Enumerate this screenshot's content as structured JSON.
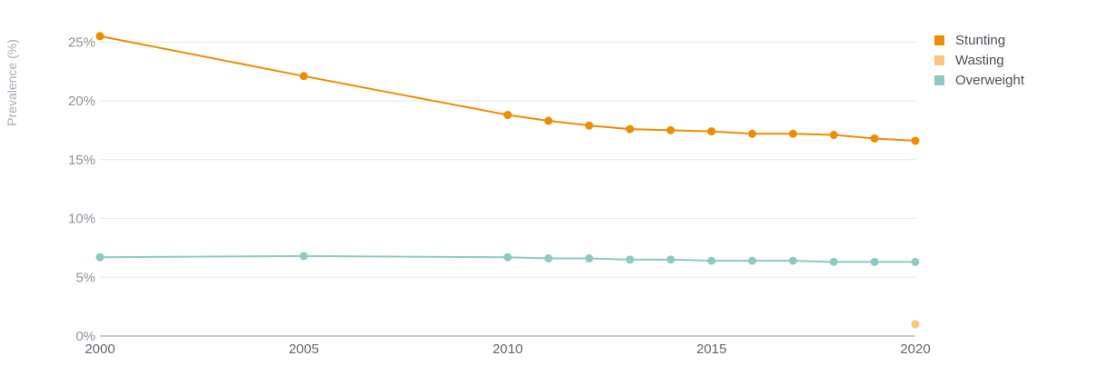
{
  "chart_data": {
    "type": "line",
    "ylabel": "Prevalence (%)",
    "xlabel": "",
    "xlim": [
      2000,
      2020
    ],
    "ylim": [
      0,
      27.5
    ],
    "x_ticks": [
      "2000",
      "2005",
      "2010",
      "2015",
      "2020"
    ],
    "y_ticks": [
      "0%",
      "5%",
      "10%",
      "15%",
      "20%",
      "25%"
    ],
    "grid": true,
    "legend_position": "top-right",
    "series": [
      {
        "name": "Stunting",
        "color": "#f08c00",
        "x": [
          2000,
          2005,
          2010,
          2011,
          2012,
          2013,
          2014,
          2015,
          2016,
          2017,
          2018,
          2019,
          2020
        ],
        "values": [
          25.5,
          22.1,
          18.8,
          18.3,
          17.9,
          17.6,
          17.5,
          17.4,
          17.2,
          17.2,
          17.1,
          16.8,
          16.6
        ]
      },
      {
        "name": "Wasting",
        "color": "#fcc47c",
        "x": [
          2020
        ],
        "values": [
          1.0
        ]
      },
      {
        "name": "Overweight",
        "color": "#8ecac5",
        "x": [
          2000,
          2005,
          2010,
          2011,
          2012,
          2013,
          2014,
          2015,
          2016,
          2017,
          2018,
          2019,
          2020
        ],
        "values": [
          6.7,
          6.8,
          6.7,
          6.6,
          6.6,
          6.5,
          6.5,
          6.4,
          6.4,
          6.4,
          6.3,
          6.3,
          6.3
        ]
      }
    ]
  }
}
